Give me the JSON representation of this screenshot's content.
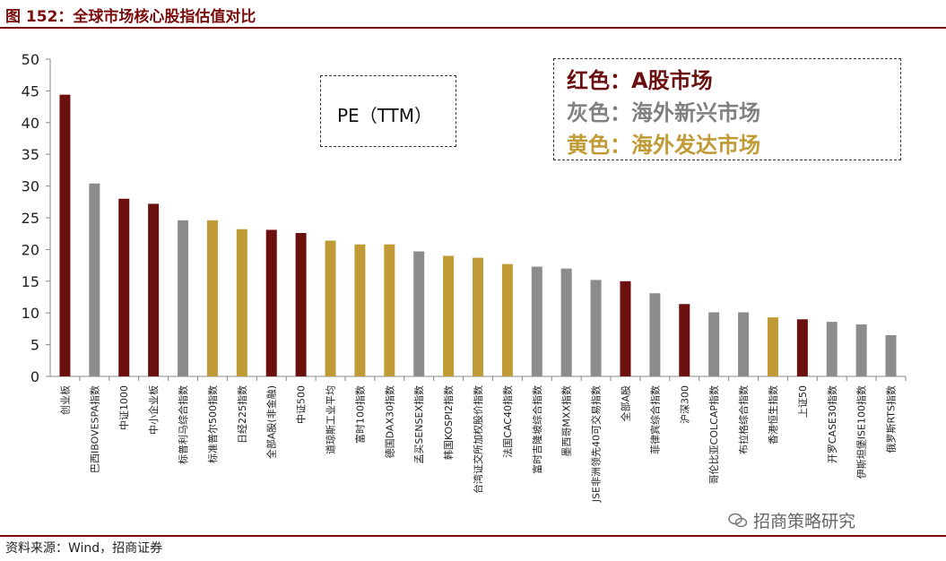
{
  "header": {
    "title": "图 152：全球市场核心股指估值对比"
  },
  "footer": {
    "source": "资料来源：Wind，招商证券",
    "watermark": "招商策略研究"
  },
  "annotation": {
    "pe_label": "PE（TTM）"
  },
  "legend": [
    {
      "text": "红色：A股市场",
      "color": "#6b0f0f"
    },
    {
      "text": "灰色：海外新兴市场",
      "color": "#808080"
    },
    {
      "text": "黄色：海外发达市场",
      "color": "#c09a35"
    }
  ],
  "colors": {
    "a_share": "#6b0f0f",
    "emerging": "#8c8c8c",
    "developed": "#c09a35",
    "rule": "#7a0c0c"
  },
  "chart_data": {
    "type": "bar",
    "ylim": [
      0,
      50
    ],
    "yticks": [
      0,
      5,
      10,
      15,
      20,
      25,
      30,
      35,
      40,
      45,
      50
    ],
    "grid": false,
    "categories": [
      "创业板",
      "巴西IBOVESPA指数",
      "中证1000",
      "中小企业板",
      "标普利马综合指数",
      "标准普尔500指数",
      "日经225指数",
      "全部A股(非金融)",
      "中证500",
      "道琼斯工业平均",
      "富时100指数",
      "德国DAX30指数",
      "孟买SENSEX指数",
      "韩国KOSPI2指数",
      "台湾证交所加权股价指数",
      "法国CAC40指数",
      "富时吉隆坡综合指数",
      "墨西哥MXX指数",
      "JSE非洲领先40可交易指数",
      "全部A股",
      "菲律宾综合指数",
      "沪深300",
      "哥伦比亚COLCAP指数",
      "布拉格综合指数",
      "香港恒生指数",
      "上证50",
      "开罗CASE30指数",
      "伊斯坦堡ISE100指数",
      "俄罗斯RTS指数"
    ],
    "values": [
      44.4,
      30.4,
      28.0,
      27.2,
      24.6,
      24.6,
      23.2,
      23.1,
      22.6,
      21.4,
      20.8,
      20.8,
      19.7,
      19.0,
      18.7,
      17.7,
      17.3,
      17.0,
      15.2,
      15.0,
      13.1,
      11.4,
      10.1,
      10.1,
      9.3,
      9.0,
      8.6,
      8.2,
      6.5
    ],
    "groups": [
      "a_share",
      "emerging",
      "a_share",
      "a_share",
      "emerging",
      "developed",
      "developed",
      "a_share",
      "a_share",
      "developed",
      "developed",
      "developed",
      "emerging",
      "developed",
      "developed",
      "developed",
      "emerging",
      "emerging",
      "emerging",
      "a_share",
      "emerging",
      "a_share",
      "emerging",
      "emerging",
      "developed",
      "a_share",
      "emerging",
      "emerging",
      "emerging"
    ]
  }
}
